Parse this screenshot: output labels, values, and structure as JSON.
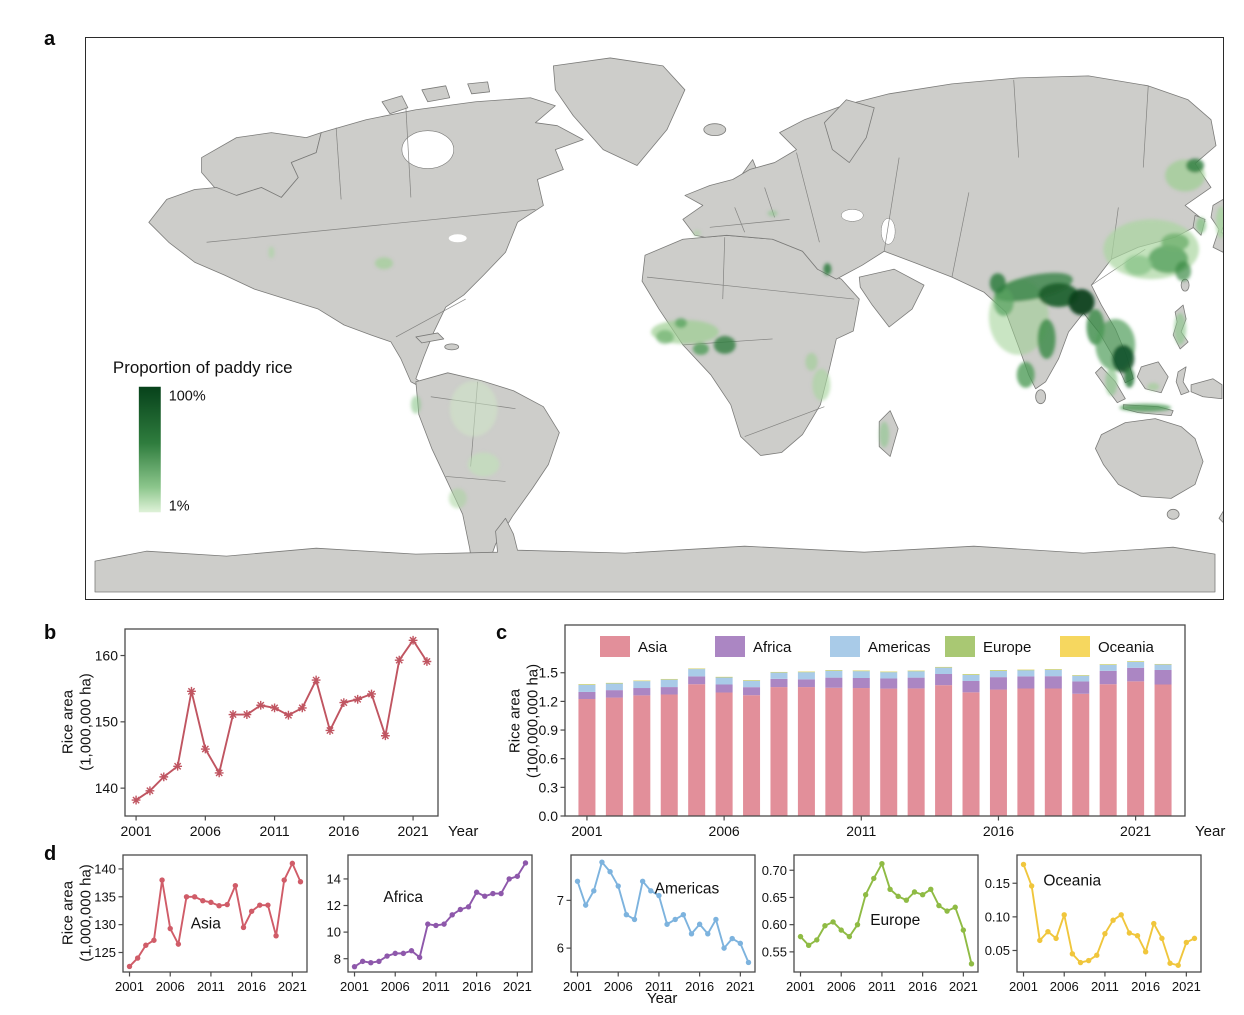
{
  "figure": {
    "panels": {
      "a": "a",
      "b": "b",
      "c": "c",
      "d": "d"
    },
    "year_label": "Year"
  },
  "map": {
    "legend_title": "Proportion of paddy rice",
    "legend_max_label": "100%",
    "legend_min_label": "1%",
    "colors": {
      "land": "#cdcdca",
      "border": "#7b7b79",
      "ocean": "#ffffff",
      "rice_high": "#07421b",
      "rice_low": "#dff2d8"
    }
  },
  "chart_data": [
    {
      "id": "world",
      "panel": "b",
      "type": "line",
      "marker": "star",
      "color": "#c05561",
      "ylabel": [
        "Rice area",
        "(1,000,000 ha)"
      ],
      "xlabel": "Year",
      "x": [
        2001,
        2002,
        2003,
        2004,
        2005,
        2006,
        2007,
        2008,
        2009,
        2010,
        2011,
        2012,
        2013,
        2014,
        2015,
        2016,
        2017,
        2018,
        2019,
        2020,
        2021,
        2022
      ],
      "values": [
        138.2,
        139.6,
        141.7,
        143.3,
        154.6,
        145.9,
        142.3,
        151.1,
        151.1,
        152.5,
        152.1,
        151.0,
        152.1,
        156.3,
        148.7,
        152.9,
        153.4,
        154.2,
        147.9,
        159.3,
        162.3,
        159.1
      ],
      "xlim": [
        2000.2,
        2022.8
      ],
      "ylim": [
        135.8,
        164.0
      ],
      "xticks": [
        2001,
        2006,
        2011,
        2016,
        2021
      ],
      "xtick_labels": [
        "2001",
        "2006",
        "2011",
        "2016",
        "2021"
      ],
      "yticks": [
        140,
        150,
        160
      ],
      "ytick_labels": [
        "140",
        "150",
        "160"
      ]
    },
    {
      "id": "stack",
      "panel": "c",
      "type": "stacked_bar",
      "ylabel": [
        "Rice area",
        "(100,000,000 ha)"
      ],
      "xlabel": "Year",
      "x": [
        2001,
        2002,
        2003,
        2004,
        2005,
        2006,
        2007,
        2008,
        2009,
        2010,
        2011,
        2012,
        2013,
        2014,
        2015,
        2016,
        2017,
        2018,
        2019,
        2020,
        2021,
        2022
      ],
      "series": [
        {
          "name": "Asia",
          "color": "#e28f9a",
          "values": [
            1.225,
            1.24,
            1.263,
            1.272,
            1.38,
            1.293,
            1.265,
            1.35,
            1.35,
            1.343,
            1.34,
            1.334,
            1.336,
            1.37,
            1.295,
            1.324,
            1.335,
            1.335,
            1.28,
            1.38,
            1.41,
            1.377
          ]
        },
        {
          "name": "Africa",
          "color": "#ab86c3",
          "values": [
            0.074,
            0.078,
            0.077,
            0.078,
            0.082,
            0.084,
            0.084,
            0.086,
            0.081,
            0.106,
            0.105,
            0.106,
            0.113,
            0.117,
            0.119,
            0.13,
            0.127,
            0.129,
            0.129,
            0.14,
            0.142,
            0.152
          ]
        },
        {
          "name": "Americas",
          "color": "#a9cbe8",
          "values": [
            0.074,
            0.069,
            0.072,
            0.078,
            0.076,
            0.073,
            0.067,
            0.066,
            0.074,
            0.072,
            0.071,
            0.065,
            0.066,
            0.067,
            0.063,
            0.065,
            0.063,
            0.066,
            0.06,
            0.062,
            0.061,
            0.057
          ]
        },
        {
          "name": "Europe",
          "color": "#a9c873",
          "values": [
            0.006,
            0.006,
            0.006,
            0.006,
            0.006,
            0.006,
            0.006,
            0.006,
            0.007,
            0.007,
            0.007,
            0.007,
            0.007,
            0.006,
            0.007,
            0.007,
            0.007,
            0.006,
            0.006,
            0.006,
            0.006,
            0.005
          ]
        },
        {
          "name": "Oceania",
          "color": "#f6d75f",
          "values": [
            0.002,
            0.001,
            0.001,
            0.001,
            0.001,
            0.001,
            0.0005,
            0.0003,
            0.0004,
            0.0004,
            0.001,
            0.001,
            0.001,
            0.001,
            0.001,
            0.0005,
            0.001,
            0.001,
            0.0003,
            0.0003,
            0.001,
            0.001
          ]
        }
      ],
      "xlim": [
        2000.2,
        2022.8
      ],
      "ylim": [
        0,
        2.0
      ],
      "xticks": [
        2001,
        2006,
        2011,
        2016,
        2021
      ],
      "xtick_labels": [
        "2001",
        "2006",
        "2011",
        "2016",
        "2021"
      ],
      "yticks": [
        0,
        0.3,
        0.6,
        0.9,
        1.2,
        1.5
      ],
      "ytick_labels": [
        "0.0",
        "0.3",
        "0.6",
        "0.9",
        "1.2",
        "1.5"
      ],
      "legend_position": "top"
    },
    {
      "id": "asia",
      "panel": "d",
      "type": "line",
      "marker": "dot",
      "color": "#d05c68",
      "label": "Asia",
      "label_pos": {
        "x": 0.45,
        "y": 0.63
      },
      "ylabel": [
        "Rice area",
        "(1,000,000 ha)"
      ],
      "x": [
        2001,
        2002,
        2003,
        2004,
        2005,
        2006,
        2007,
        2008,
        2009,
        2010,
        2011,
        2012,
        2013,
        2014,
        2015,
        2016,
        2017,
        2018,
        2019,
        2020,
        2021,
        2022
      ],
      "values": [
        122.5,
        124.0,
        126.3,
        127.2,
        138.0,
        129.3,
        126.5,
        135.0,
        135.0,
        134.3,
        134.0,
        133.4,
        133.6,
        137.0,
        129.5,
        132.4,
        133.5,
        133.5,
        128.0,
        138.0,
        141.0,
        137.7
      ],
      "xlim": [
        2000.2,
        2022.8
      ],
      "ylim": [
        121.5,
        142.5
      ],
      "xticks": [
        2001,
        2006,
        2011,
        2016,
        2021
      ],
      "xtick_labels": [
        "2001",
        "2006",
        "2011",
        "2016",
        "2021"
      ],
      "yticks": [
        125,
        130,
        135,
        140
      ],
      "ytick_labels": [
        "125",
        "130",
        "135",
        "140"
      ]
    },
    {
      "id": "africa",
      "panel": "d",
      "type": "line",
      "marker": "dot",
      "color": "#8e58ab",
      "label": "Africa",
      "label_pos": {
        "x": 0.3,
        "y": 0.4
      },
      "x": [
        2001,
        2002,
        2003,
        2004,
        2005,
        2006,
        2007,
        2008,
        2009,
        2010,
        2011,
        2012,
        2013,
        2014,
        2015,
        2016,
        2017,
        2018,
        2019,
        2020,
        2021,
        2022
      ],
      "values": [
        7.4,
        7.8,
        7.7,
        7.8,
        8.2,
        8.4,
        8.4,
        8.6,
        8.1,
        10.6,
        10.5,
        10.6,
        11.3,
        11.7,
        11.9,
        13.0,
        12.7,
        12.9,
        12.9,
        14.0,
        14.2,
        15.2
      ],
      "xlim": [
        2000.2,
        2022.8
      ],
      "ylim": [
        7.0,
        15.8
      ],
      "xticks": [
        2001,
        2006,
        2011,
        2016,
        2021
      ],
      "xtick_labels": [
        "2001",
        "2006",
        "2011",
        "2016",
        "2021"
      ],
      "yticks": [
        8,
        10,
        12,
        14
      ],
      "ytick_labels": [
        "8",
        "10",
        "12",
        "14"
      ]
    },
    {
      "id": "americas",
      "panel": "d",
      "type": "line",
      "marker": "dot",
      "color": "#7db3de",
      "label": "Americas",
      "label_pos": {
        "x": 0.63,
        "y": 0.33
      },
      "x": [
        2001,
        2002,
        2003,
        2004,
        2005,
        2006,
        2007,
        2008,
        2009,
        2010,
        2011,
        2012,
        2013,
        2014,
        2015,
        2016,
        2017,
        2018,
        2019,
        2020,
        2021,
        2022
      ],
      "values": [
        7.4,
        6.9,
        7.2,
        7.8,
        7.6,
        7.3,
        6.7,
        6.6,
        7.4,
        7.2,
        7.1,
        6.5,
        6.6,
        6.7,
        6.3,
        6.5,
        6.3,
        6.6,
        6.0,
        6.2,
        6.1,
        5.7
      ],
      "xlim": [
        2000.2,
        2022.8
      ],
      "ylim": [
        5.5,
        7.95
      ],
      "xticks": [
        2001,
        2006,
        2011,
        2016,
        2021
      ],
      "xtick_labels": [
        "2001",
        "2006",
        "2011",
        "2016",
        "2021"
      ],
      "yticks": [
        6,
        7
      ],
      "ytick_labels": [
        "6",
        "7"
      ]
    },
    {
      "id": "europe",
      "panel": "d",
      "type": "line",
      "marker": "dot",
      "color": "#8fbb44",
      "label": "Europe",
      "label_pos": {
        "x": 0.55,
        "y": 0.6
      },
      "x": [
        2001,
        2002,
        2003,
        2004,
        2005,
        2006,
        2007,
        2008,
        2009,
        2010,
        2011,
        2012,
        2013,
        2014,
        2015,
        2016,
        2017,
        2018,
        2019,
        2020,
        2021,
        2022
      ],
      "values": [
        0.578,
        0.562,
        0.572,
        0.598,
        0.605,
        0.59,
        0.578,
        0.6,
        0.655,
        0.685,
        0.712,
        0.665,
        0.652,
        0.645,
        0.66,
        0.655,
        0.665,
        0.635,
        0.625,
        0.632,
        0.59,
        0.528
      ],
      "xlim": [
        2000.2,
        2022.8
      ],
      "ylim": [
        0.513,
        0.728
      ],
      "xticks": [
        2001,
        2006,
        2011,
        2016,
        2021
      ],
      "xtick_labels": [
        "2001",
        "2006",
        "2011",
        "2016",
        "2021"
      ],
      "yticks": [
        0.55,
        0.6,
        0.65,
        0.7
      ],
      "ytick_labels": [
        "0.55",
        "0.60",
        "0.65",
        "0.70"
      ]
    },
    {
      "id": "oceania",
      "panel": "d",
      "type": "line",
      "marker": "dot",
      "color": "#f0c63c",
      "label": "Oceania",
      "label_pos": {
        "x": 0.3,
        "y": 0.26
      },
      "x": [
        2001,
        2002,
        2003,
        2004,
        2005,
        2006,
        2007,
        2008,
        2009,
        2010,
        2011,
        2012,
        2013,
        2014,
        2015,
        2016,
        2017,
        2018,
        2019,
        2020,
        2021,
        2022
      ],
      "values": [
        0.178,
        0.146,
        0.065,
        0.078,
        0.068,
        0.103,
        0.045,
        0.032,
        0.035,
        0.043,
        0.075,
        0.095,
        0.103,
        0.076,
        0.072,
        0.048,
        0.09,
        0.068,
        0.031,
        0.028,
        0.062,
        0.068
      ],
      "xlim": [
        2000.2,
        2022.8
      ],
      "ylim": [
        0.018,
        0.192
      ],
      "xticks": [
        2001,
        2006,
        2011,
        2016,
        2021
      ],
      "xtick_labels": [
        "2001",
        "2006",
        "2011",
        "2016",
        "2021"
      ],
      "yticks": [
        0.05,
        0.1,
        0.15
      ],
      "ytick_labels": [
        "0.05",
        "0.10",
        "0.15"
      ]
    }
  ]
}
